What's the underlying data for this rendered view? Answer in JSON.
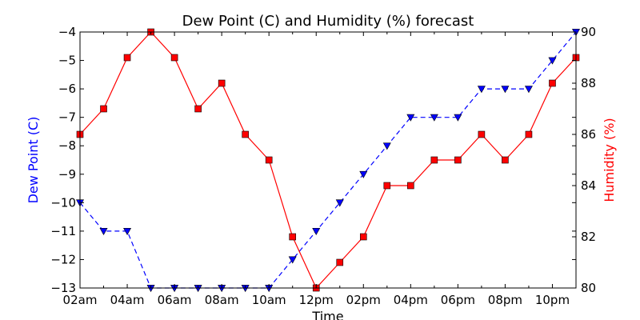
{
  "chart_data": {
    "type": "line",
    "title": "Dew Point (C) and Humidity (%) forecast",
    "xlabel": "Time",
    "ylabel_left": "Dew Point (C)",
    "ylabel_right": "Humidity (%)",
    "x_tick_labels": [
      "02am",
      "04am",
      "06am",
      "08am",
      "10am",
      "12pm",
      "02pm",
      "04pm",
      "06pm",
      "08pm",
      "10pm"
    ],
    "x_hours": [
      2,
      3,
      4,
      5,
      6,
      7,
      8,
      9,
      10,
      11,
      12,
      13,
      14,
      15,
      16,
      17,
      18,
      19,
      20,
      21,
      22,
      23
    ],
    "xlim_hours": [
      2,
      23
    ],
    "ylim_left": [
      -13,
      -4
    ],
    "ylim_right": [
      80,
      90
    ],
    "left_ticks": [
      -13,
      -12,
      -11,
      -10,
      -9,
      -8,
      -7,
      -6,
      -5,
      -4
    ],
    "right_ticks": [
      80,
      82,
      84,
      86,
      88,
      90
    ],
    "grid": false,
    "series": [
      {
        "axis": "left",
        "color": "#0000ff",
        "marker": "triangle-down",
        "line_style": "dashed",
        "values": [
          -10,
          -11,
          -11,
          -13,
          -13,
          -13,
          -13,
          -13,
          -13,
          -12,
          -11,
          -10,
          -9,
          -8,
          -7,
          -7,
          -7,
          -6,
          -6,
          -6,
          -5,
          -4
        ]
      },
      {
        "axis": "right",
        "color": "#ff0000",
        "marker": "square",
        "line_style": "solid",
        "values": [
          86,
          87,
          89,
          90,
          89,
          87,
          88,
          86,
          85,
          82,
          80,
          81,
          82,
          84,
          84,
          85,
          85,
          86,
          85,
          86,
          88,
          89
        ]
      }
    ]
  }
}
